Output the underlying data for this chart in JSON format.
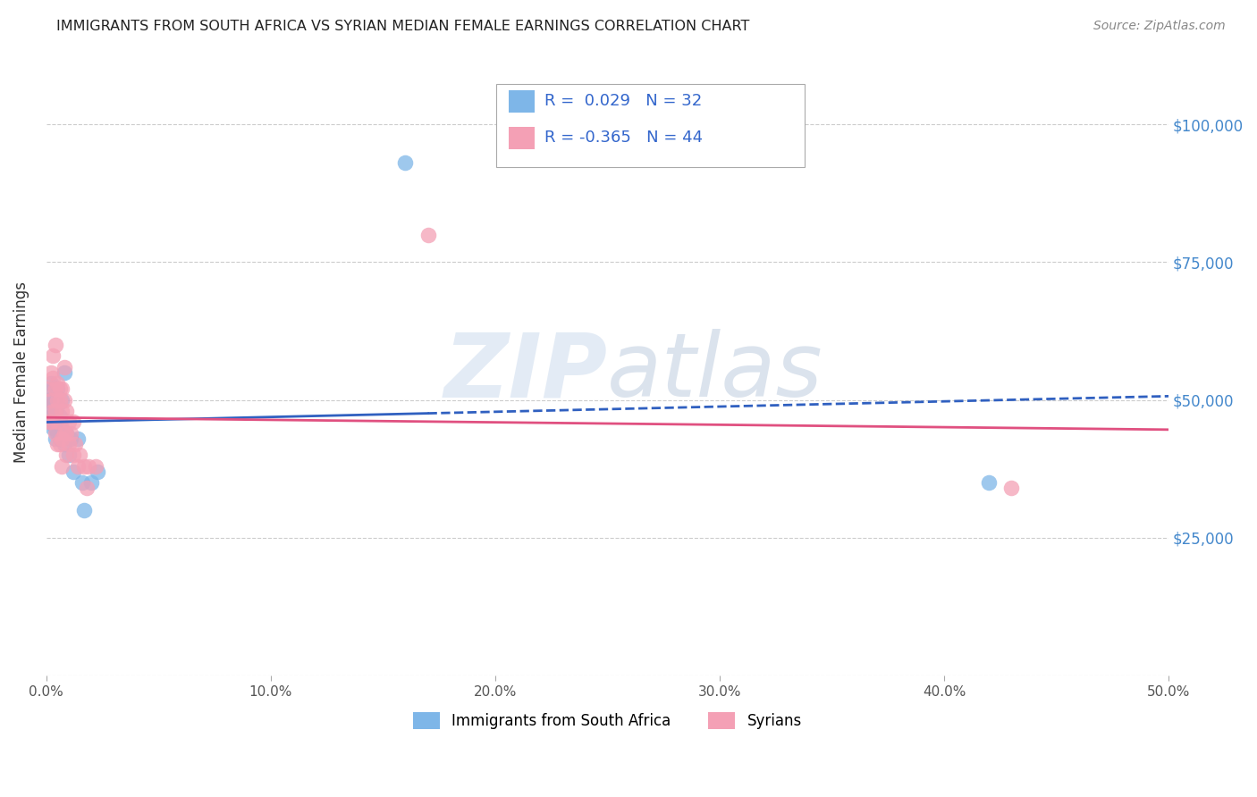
{
  "title": "IMMIGRANTS FROM SOUTH AFRICA VS SYRIAN MEDIAN FEMALE EARNINGS CORRELATION CHART",
  "source": "Source: ZipAtlas.com",
  "ylabel": "Median Female Earnings",
  "xlim": [
    0.0,
    0.5
  ],
  "ylim": [
    0,
    110000
  ],
  "xtick_labels": [
    "0.0%",
    "10.0%",
    "20.0%",
    "30.0%",
    "40.0%",
    "50.0%"
  ],
  "xtick_vals": [
    0.0,
    0.1,
    0.2,
    0.3,
    0.4,
    0.5
  ],
  "ytick_vals": [
    0,
    25000,
    50000,
    75000,
    100000
  ],
  "ytick_labels": [
    "",
    "$25,000",
    "$50,000",
    "$75,000",
    "$100,000"
  ],
  "r_sa": 0.029,
  "n_sa": 32,
  "r_sy": -0.365,
  "n_sy": 44,
  "color_sa": "#7EB6E8",
  "color_sy": "#F4A0B5",
  "trendline_sa_color": "#3060C0",
  "trendline_sy_color": "#E05080",
  "watermark_zip": "ZIP",
  "watermark_atlas": "atlas",
  "background_color": "#FFFFFF",
  "sa_x": [
    0.001,
    0.002,
    0.002,
    0.002,
    0.003,
    0.003,
    0.003,
    0.003,
    0.004,
    0.004,
    0.004,
    0.004,
    0.005,
    0.005,
    0.005,
    0.006,
    0.006,
    0.007,
    0.007,
    0.008,
    0.008,
    0.009,
    0.01,
    0.011,
    0.012,
    0.014,
    0.016,
    0.017,
    0.02,
    0.023,
    0.16,
    0.42
  ],
  "sa_y": [
    50000,
    53000,
    49000,
    47000,
    52000,
    50000,
    47000,
    45000,
    51000,
    48000,
    45000,
    43000,
    52000,
    49000,
    44000,
    47000,
    43000,
    50000,
    45000,
    55000,
    42000,
    44000,
    40000,
    43000,
    37000,
    43000,
    35000,
    30000,
    35000,
    37000,
    93000,
    35000
  ],
  "sy_x": [
    0.001,
    0.001,
    0.002,
    0.002,
    0.002,
    0.003,
    0.003,
    0.003,
    0.004,
    0.004,
    0.004,
    0.004,
    0.005,
    0.005,
    0.005,
    0.005,
    0.006,
    0.006,
    0.006,
    0.006,
    0.007,
    0.007,
    0.007,
    0.007,
    0.008,
    0.008,
    0.008,
    0.009,
    0.009,
    0.009,
    0.01,
    0.01,
    0.011,
    0.012,
    0.012,
    0.013,
    0.014,
    0.015,
    0.017,
    0.018,
    0.019,
    0.022,
    0.17,
    0.43
  ],
  "sy_y": [
    52000,
    46000,
    55000,
    50000,
    46000,
    58000,
    54000,
    48000,
    60000,
    52000,
    48000,
    44000,
    53000,
    50000,
    46000,
    42000,
    52000,
    50000,
    46000,
    42000,
    52000,
    48000,
    43000,
    38000,
    56000,
    50000,
    44000,
    48000,
    44000,
    40000,
    46000,
    42000,
    44000,
    46000,
    40000,
    42000,
    38000,
    40000,
    38000,
    34000,
    38000,
    38000,
    80000,
    34000
  ],
  "legend_sa": "Immigrants from South Africa",
  "legend_sy": "Syrians"
}
